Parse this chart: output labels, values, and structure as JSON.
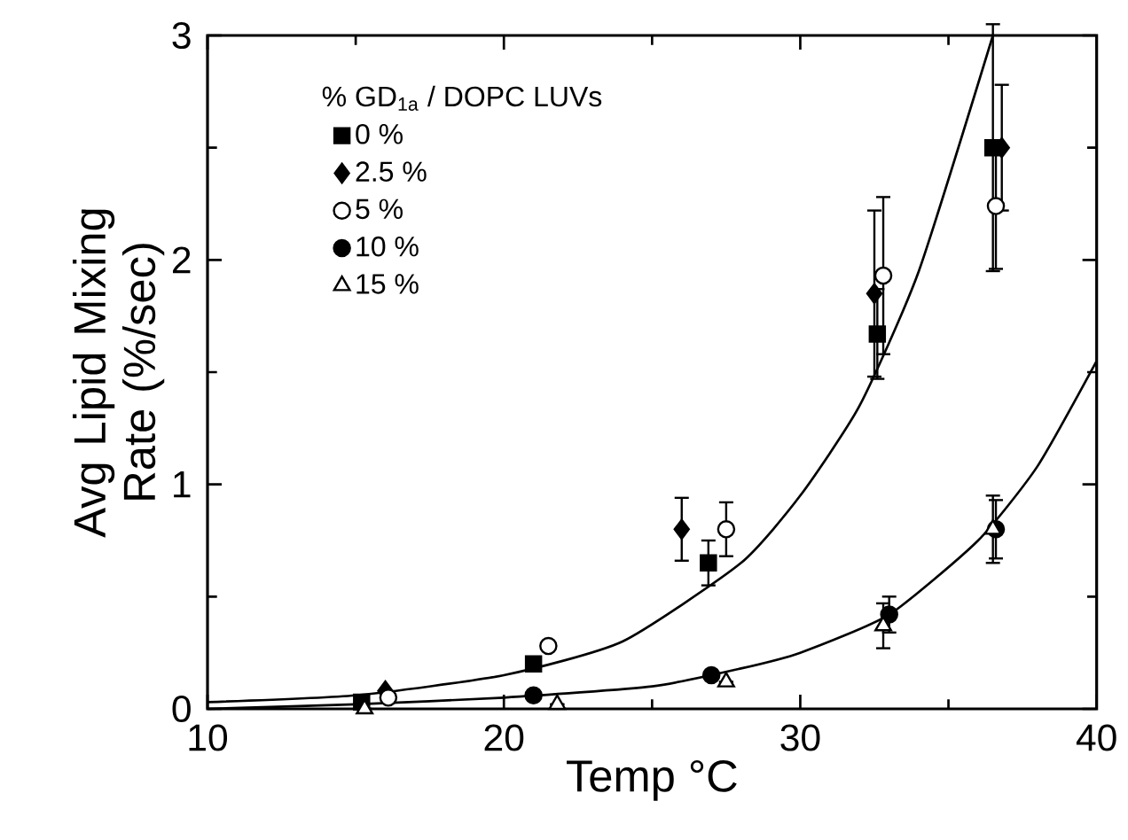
{
  "chart_data": {
    "type": "scatter",
    "xlabel": "Temp  °C",
    "ylabel": "Avg Lipid Mixing Rate (%/sec)",
    "legend_title": "% GD$_{1a}$ / DOPC  LUVs",
    "xlim": [
      10,
      40
    ],
    "ylim": [
      0,
      3
    ],
    "xticks": [
      10,
      20,
      30,
      40
    ],
    "yticks": [
      0,
      1,
      2,
      3
    ],
    "legend": "top left",
    "grid": false,
    "series": [
      {
        "name": "0  %",
        "color": "#000000",
        "marker": "square",
        "x": [
          15.2,
          21.0,
          26.9,
          32.6,
          36.5
        ],
        "values": [
          0.03,
          0.2,
          0.65,
          1.67,
          2.5
        ],
        "errors": [
          null,
          null,
          0.1,
          0.2,
          0.55
        ]
      },
      {
        "name": "2.5 %",
        "color": "#000000",
        "marker": "diamond",
        "x": [
          16.0,
          26.0,
          32.5,
          36.8
        ],
        "values": [
          0.08,
          0.8,
          1.85,
          2.5
        ],
        "errors": [
          null,
          0.14,
          0.37,
          0.28
        ]
      },
      {
        "name": "5  %",
        "color": "#ffffff",
        "marker": "circle",
        "x": [
          16.1,
          21.5,
          27.5,
          32.8,
          36.6
        ],
        "values": [
          0.05,
          0.28,
          0.8,
          1.93,
          2.24
        ],
        "errors": [
          null,
          null,
          0.12,
          0.35,
          0.28
        ]
      },
      {
        "name": "10 %",
        "color": "#000000",
        "marker": "circle",
        "x": [
          21.0,
          27.0,
          33.0,
          36.6
        ],
        "values": [
          0.06,
          0.15,
          0.42,
          0.8
        ],
        "errors": [
          null,
          null,
          0.08,
          0.13
        ]
      },
      {
        "name": "15 %",
        "color": "#ffffff",
        "marker": "triangle",
        "x": [
          15.3,
          21.8,
          27.5,
          32.8,
          36.5
        ],
        "values": [
          0.0,
          0.02,
          0.12,
          0.37,
          0.8
        ],
        "errors": [
          null,
          null,
          null,
          0.1,
          0.15
        ]
      },
      {
        "type": "line",
        "color": "#000000",
        "marker": "none",
        "x": [
          10,
          15,
          20,
          24,
          28,
          30,
          32,
          34,
          36.5
        ],
        "values": [
          0.03,
          0.06,
          0.15,
          0.3,
          0.65,
          0.95,
          1.35,
          1.95,
          3.0
        ]
      },
      {
        "type": "line",
        "color": "#000000",
        "marker": "none",
        "x": [
          10,
          15,
          20,
          25,
          28,
          30,
          33,
          36,
          38,
          40
        ],
        "values": [
          0.0,
          0.02,
          0.05,
          0.1,
          0.18,
          0.25,
          0.42,
          0.75,
          1.08,
          1.55
        ]
      }
    ]
  }
}
